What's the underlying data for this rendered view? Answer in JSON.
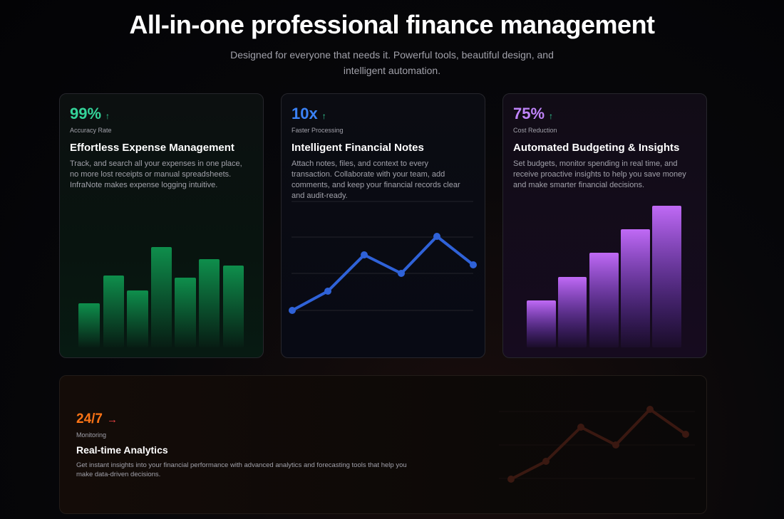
{
  "header": {
    "title": "All-in-one professional finance management",
    "subtitle": "Designed for everyone that needs it. Powerful tools, beautiful design, and intelligent automation."
  },
  "cards": [
    {
      "stat": "99%",
      "arrow": "↑",
      "stat_label": "Accuracy Rate",
      "heading": "Effortless Expense Management",
      "description": "Track, and search all your expenses in one place, no more lost receipts or manual spreadsheets. InfraNote makes expense logging intuitive."
    },
    {
      "stat": "10x",
      "arrow": "↑",
      "stat_label": "Faster Processing",
      "heading": "Intelligent Financial Notes",
      "description": "Attach notes, files, and context to every transaction. Collaborate with your team, add comments, and keep your financial records clear and audit-ready."
    },
    {
      "stat": "75%",
      "arrow": "↑",
      "stat_label": "Cost Reduction",
      "heading": "Automated Budgeting & Insights",
      "description": "Set budgets, monitor spending in real time, and receive proactive insights to help you save money and make smarter financial decisions."
    }
  ],
  "wide_card": {
    "stat": "24/7",
    "arrow": "→",
    "stat_label": "Monitoring",
    "heading": "Real-time Analytics",
    "description": "Get instant insights into your financial performance with advanced analytics and forecasting tools that help you make data-driven decisions."
  }
}
